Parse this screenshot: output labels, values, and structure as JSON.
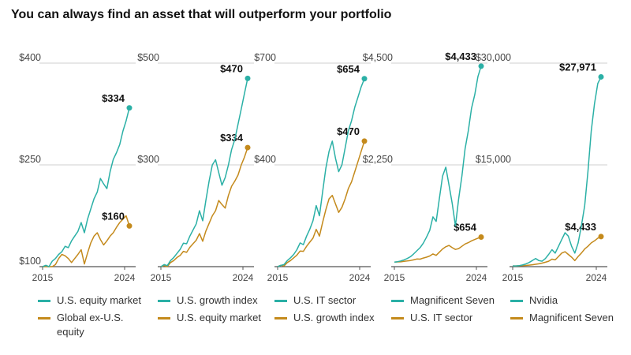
{
  "title": "You can always find an asset that will outperform your portfolio",
  "colors": {
    "teal": "#2bb0a6",
    "gold": "#c48a1c",
    "grid": "#cfcfcf",
    "axis": "#555555"
  },
  "chart_data": [
    {
      "type": "line",
      "x_ticks": [
        "2015",
        "2024"
      ],
      "y_ticks": [
        "$400",
        "$250",
        "$100"
      ],
      "ylim": [
        100,
        400
      ],
      "series": [
        {
          "name": "U.S. equity market",
          "color": "teal",
          "end_value": 334,
          "end_label": "$334",
          "values": [
            100,
            102,
            98,
            108,
            112,
            118,
            122,
            130,
            128,
            138,
            145,
            152,
            165,
            150,
            170,
            185,
            200,
            210,
            230,
            222,
            215,
            240,
            258,
            268,
            280,
            300,
            315,
            334
          ]
        },
        {
          "name": "Global ex-U.S. equity",
          "color": "gold",
          "end_value": 160,
          "end_label": "$160",
          "values": [
            100,
            98,
            92,
            96,
            103,
            112,
            118,
            116,
            112,
            106,
            112,
            118,
            125,
            104,
            120,
            135,
            145,
            150,
            140,
            132,
            138,
            145,
            150,
            158,
            165,
            170,
            175,
            160
          ]
        }
      ]
    },
    {
      "type": "line",
      "x_ticks": [
        "2015",
        "2024"
      ],
      "y_ticks": [
        "$500",
        "$300"
      ],
      "ylim": [
        100,
        500
      ],
      "series": [
        {
          "name": "U.S. growth index",
          "color": "teal",
          "end_value": 470,
          "end_label": "$470",
          "values": [
            100,
            104,
            102,
            112,
            118,
            126,
            134,
            146,
            145,
            160,
            172,
            184,
            210,
            190,
            230,
            268,
            300,
            310,
            285,
            260,
            275,
            300,
            330,
            350,
            380,
            410,
            440,
            470
          ]
        },
        {
          "name": "U.S. equity market",
          "color": "gold",
          "end_value": 334,
          "end_label": "$334",
          "values": [
            100,
            102,
            98,
            108,
            112,
            118,
            122,
            130,
            128,
            138,
            145,
            152,
            165,
            150,
            170,
            185,
            200,
            210,
            230,
            222,
            215,
            240,
            258,
            268,
            280,
            300,
            315,
            334
          ]
        }
      ]
    },
    {
      "type": "line",
      "x_ticks": [
        "2015",
        "2024"
      ],
      "y_ticks": [
        "$700",
        "$400"
      ],
      "ylim": [
        100,
        700
      ],
      "series": [
        {
          "name": "U.S. IT sector",
          "color": "teal",
          "end_value": 654,
          "end_label": "$654",
          "values": [
            100,
            104,
            106,
            118,
            126,
            136,
            150,
            170,
            165,
            190,
            210,
            235,
            280,
            250,
            320,
            390,
            440,
            470,
            420,
            380,
            400,
            450,
            500,
            530,
            570,
            600,
            630,
            654
          ]
        },
        {
          "name": "U.S. growth index",
          "color": "gold",
          "end_value": 470,
          "end_label": "$470",
          "values": [
            100,
            104,
            102,
            112,
            118,
            126,
            134,
            146,
            145,
            160,
            172,
            184,
            210,
            190,
            230,
            268,
            300,
            310,
            285,
            260,
            275,
            300,
            330,
            350,
            380,
            410,
            440,
            470
          ]
        }
      ]
    },
    {
      "type": "line",
      "x_ticks": [
        "2015",
        "2024"
      ],
      "y_ticks": [
        "$4,500",
        "$2,250"
      ],
      "ylim": [
        0,
        4500
      ],
      "series": [
        {
          "name": "Magnificent Seven",
          "color": "teal",
          "end_value": 4433,
          "end_label": "$4,433",
          "values": [
            100,
            110,
            125,
            150,
            180,
            220,
            280,
            350,
            420,
            520,
            650,
            800,
            1100,
            1000,
            1500,
            2000,
            2200,
            1800,
            1400,
            900,
            1500,
            2000,
            2600,
            3000,
            3500,
            3800,
            4200,
            4433
          ]
        },
        {
          "name": "U.S. IT sector",
          "color": "gold",
          "end_value": 654,
          "end_label": "$654",
          "values": [
            100,
            104,
            106,
            118,
            126,
            136,
            150,
            170,
            165,
            190,
            210,
            235,
            280,
            250,
            320,
            390,
            440,
            470,
            420,
            380,
            400,
            450,
            500,
            530,
            570,
            600,
            630,
            654
          ]
        }
      ]
    },
    {
      "type": "line",
      "x_ticks": [
        "2015",
        "2024"
      ],
      "y_ticks": [
        "$30,000",
        "$15,000"
      ],
      "ylim": [
        0,
        30000
      ],
      "series": [
        {
          "name": "Nvidia",
          "color": "teal",
          "end_value": 27971,
          "end_label": "$27,971",
          "values": [
            100,
            110,
            150,
            250,
            400,
            600,
            900,
            1200,
            900,
            800,
            1200,
            1800,
            2500,
            2000,
            3000,
            4000,
            5000,
            4500,
            3000,
            2000,
            3500,
            6000,
            9000,
            14000,
            20000,
            24000,
            27000,
            27971
          ]
        },
        {
          "name": "Magnificent Seven",
          "color": "gold",
          "end_value": 4433,
          "end_label": "$4,433",
          "values": [
            100,
            110,
            125,
            150,
            180,
            220,
            280,
            350,
            420,
            520,
            650,
            800,
            1100,
            1000,
            1500,
            2000,
            2200,
            1800,
            1400,
            900,
            1500,
            2000,
            2600,
            3000,
            3500,
            3800,
            4200,
            4433
          ]
        }
      ]
    }
  ],
  "legends": [
    [
      {
        "label": "U.S. equity market",
        "color": "teal"
      },
      {
        "label": "Global ex-U.S. equity",
        "color": "gold"
      }
    ],
    [
      {
        "label": "U.S. growth index",
        "color": "teal"
      },
      {
        "label": "U.S. equity market",
        "color": "gold"
      }
    ],
    [
      {
        "label": "U.S. IT sector",
        "color": "teal"
      },
      {
        "label": "U.S. growth index",
        "color": "gold"
      }
    ],
    [
      {
        "label": "Magnificent Seven",
        "color": "teal"
      },
      {
        "label": "U.S. IT sector",
        "color": "gold"
      }
    ],
    [
      {
        "label": "Nvidia",
        "color": "teal"
      },
      {
        "label": "Magnificent Seven",
        "color": "gold"
      }
    ]
  ]
}
